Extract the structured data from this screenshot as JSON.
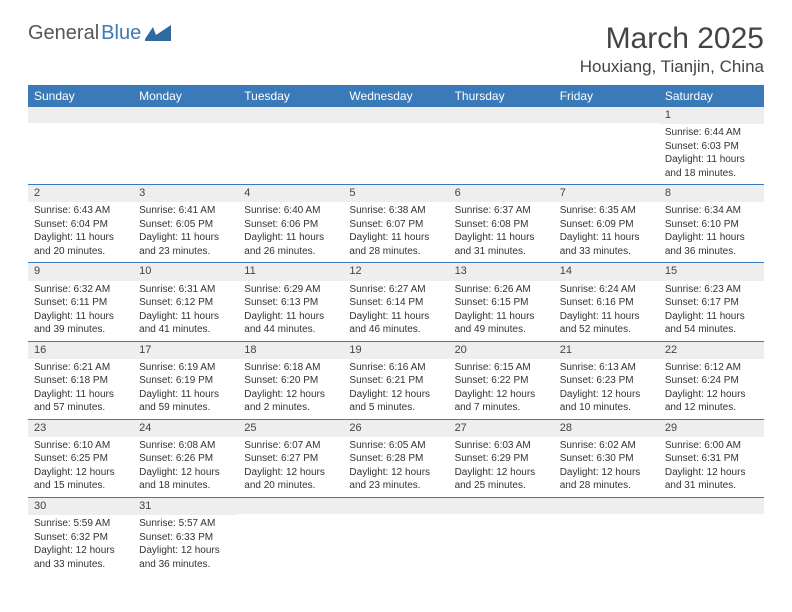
{
  "logo": {
    "part1": "General",
    "part2": "Blue"
  },
  "title": "March 2025",
  "location": "Houxiang, Tianjin, China",
  "colors": {
    "header_bg": "#3a7ab8",
    "header_text": "#ffffff",
    "daynum_bg": "#eeeeee",
    "border": "#3a7ab8",
    "text": "#333333",
    "page_bg": "#ffffff"
  },
  "weekdays": [
    "Sunday",
    "Monday",
    "Tuesday",
    "Wednesday",
    "Thursday",
    "Friday",
    "Saturday"
  ],
  "weeks": [
    [
      {
        "empty": true
      },
      {
        "empty": true
      },
      {
        "empty": true
      },
      {
        "empty": true
      },
      {
        "empty": true
      },
      {
        "empty": true
      },
      {
        "num": "1",
        "sunrise": "Sunrise: 6:44 AM",
        "sunset": "Sunset: 6:03 PM",
        "daylight": "Daylight: 11 hours and 18 minutes."
      }
    ],
    [
      {
        "num": "2",
        "sunrise": "Sunrise: 6:43 AM",
        "sunset": "Sunset: 6:04 PM",
        "daylight": "Daylight: 11 hours and 20 minutes."
      },
      {
        "num": "3",
        "sunrise": "Sunrise: 6:41 AM",
        "sunset": "Sunset: 6:05 PM",
        "daylight": "Daylight: 11 hours and 23 minutes."
      },
      {
        "num": "4",
        "sunrise": "Sunrise: 6:40 AM",
        "sunset": "Sunset: 6:06 PM",
        "daylight": "Daylight: 11 hours and 26 minutes."
      },
      {
        "num": "5",
        "sunrise": "Sunrise: 6:38 AM",
        "sunset": "Sunset: 6:07 PM",
        "daylight": "Daylight: 11 hours and 28 minutes."
      },
      {
        "num": "6",
        "sunrise": "Sunrise: 6:37 AM",
        "sunset": "Sunset: 6:08 PM",
        "daylight": "Daylight: 11 hours and 31 minutes."
      },
      {
        "num": "7",
        "sunrise": "Sunrise: 6:35 AM",
        "sunset": "Sunset: 6:09 PM",
        "daylight": "Daylight: 11 hours and 33 minutes."
      },
      {
        "num": "8",
        "sunrise": "Sunrise: 6:34 AM",
        "sunset": "Sunset: 6:10 PM",
        "daylight": "Daylight: 11 hours and 36 minutes."
      }
    ],
    [
      {
        "num": "9",
        "sunrise": "Sunrise: 6:32 AM",
        "sunset": "Sunset: 6:11 PM",
        "daylight": "Daylight: 11 hours and 39 minutes."
      },
      {
        "num": "10",
        "sunrise": "Sunrise: 6:31 AM",
        "sunset": "Sunset: 6:12 PM",
        "daylight": "Daylight: 11 hours and 41 minutes."
      },
      {
        "num": "11",
        "sunrise": "Sunrise: 6:29 AM",
        "sunset": "Sunset: 6:13 PM",
        "daylight": "Daylight: 11 hours and 44 minutes."
      },
      {
        "num": "12",
        "sunrise": "Sunrise: 6:27 AM",
        "sunset": "Sunset: 6:14 PM",
        "daylight": "Daylight: 11 hours and 46 minutes."
      },
      {
        "num": "13",
        "sunrise": "Sunrise: 6:26 AM",
        "sunset": "Sunset: 6:15 PM",
        "daylight": "Daylight: 11 hours and 49 minutes."
      },
      {
        "num": "14",
        "sunrise": "Sunrise: 6:24 AM",
        "sunset": "Sunset: 6:16 PM",
        "daylight": "Daylight: 11 hours and 52 minutes."
      },
      {
        "num": "15",
        "sunrise": "Sunrise: 6:23 AM",
        "sunset": "Sunset: 6:17 PM",
        "daylight": "Daylight: 11 hours and 54 minutes."
      }
    ],
    [
      {
        "num": "16",
        "sunrise": "Sunrise: 6:21 AM",
        "sunset": "Sunset: 6:18 PM",
        "daylight": "Daylight: 11 hours and 57 minutes."
      },
      {
        "num": "17",
        "sunrise": "Sunrise: 6:19 AM",
        "sunset": "Sunset: 6:19 PM",
        "daylight": "Daylight: 11 hours and 59 minutes."
      },
      {
        "num": "18",
        "sunrise": "Sunrise: 6:18 AM",
        "sunset": "Sunset: 6:20 PM",
        "daylight": "Daylight: 12 hours and 2 minutes."
      },
      {
        "num": "19",
        "sunrise": "Sunrise: 6:16 AM",
        "sunset": "Sunset: 6:21 PM",
        "daylight": "Daylight: 12 hours and 5 minutes."
      },
      {
        "num": "20",
        "sunrise": "Sunrise: 6:15 AM",
        "sunset": "Sunset: 6:22 PM",
        "daylight": "Daylight: 12 hours and 7 minutes."
      },
      {
        "num": "21",
        "sunrise": "Sunrise: 6:13 AM",
        "sunset": "Sunset: 6:23 PM",
        "daylight": "Daylight: 12 hours and 10 minutes."
      },
      {
        "num": "22",
        "sunrise": "Sunrise: 6:12 AM",
        "sunset": "Sunset: 6:24 PM",
        "daylight": "Daylight: 12 hours and 12 minutes."
      }
    ],
    [
      {
        "num": "23",
        "sunrise": "Sunrise: 6:10 AM",
        "sunset": "Sunset: 6:25 PM",
        "daylight": "Daylight: 12 hours and 15 minutes."
      },
      {
        "num": "24",
        "sunrise": "Sunrise: 6:08 AM",
        "sunset": "Sunset: 6:26 PM",
        "daylight": "Daylight: 12 hours and 18 minutes."
      },
      {
        "num": "25",
        "sunrise": "Sunrise: 6:07 AM",
        "sunset": "Sunset: 6:27 PM",
        "daylight": "Daylight: 12 hours and 20 minutes."
      },
      {
        "num": "26",
        "sunrise": "Sunrise: 6:05 AM",
        "sunset": "Sunset: 6:28 PM",
        "daylight": "Daylight: 12 hours and 23 minutes."
      },
      {
        "num": "27",
        "sunrise": "Sunrise: 6:03 AM",
        "sunset": "Sunset: 6:29 PM",
        "daylight": "Daylight: 12 hours and 25 minutes."
      },
      {
        "num": "28",
        "sunrise": "Sunrise: 6:02 AM",
        "sunset": "Sunset: 6:30 PM",
        "daylight": "Daylight: 12 hours and 28 minutes."
      },
      {
        "num": "29",
        "sunrise": "Sunrise: 6:00 AM",
        "sunset": "Sunset: 6:31 PM",
        "daylight": "Daylight: 12 hours and 31 minutes."
      }
    ],
    [
      {
        "num": "30",
        "sunrise": "Sunrise: 5:59 AM",
        "sunset": "Sunset: 6:32 PM",
        "daylight": "Daylight: 12 hours and 33 minutes."
      },
      {
        "num": "31",
        "sunrise": "Sunrise: 5:57 AM",
        "sunset": "Sunset: 6:33 PM",
        "daylight": "Daylight: 12 hours and 36 minutes."
      },
      {
        "empty": true
      },
      {
        "empty": true
      },
      {
        "empty": true
      },
      {
        "empty": true
      },
      {
        "empty": true
      }
    ]
  ]
}
